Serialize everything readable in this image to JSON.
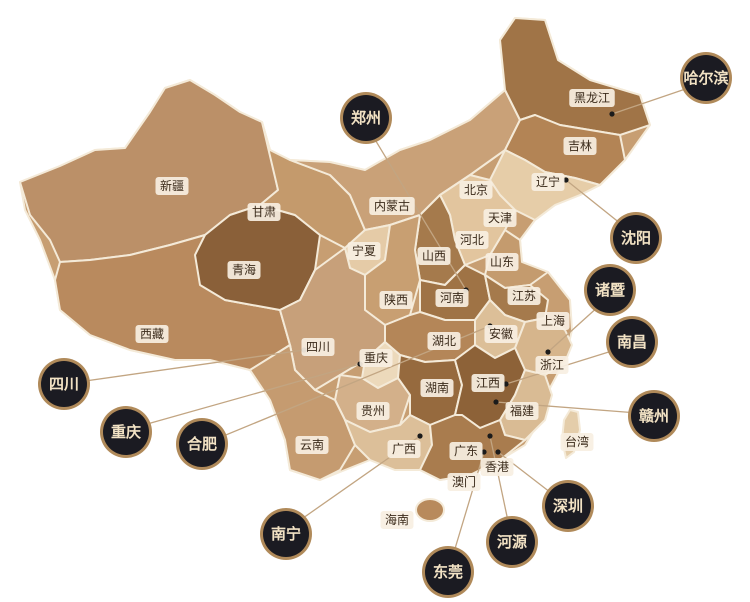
{
  "colors": {
    "land_light": "#e8d3b3",
    "land_mid": "#c79e72",
    "land_dark": "#a07447",
    "land_darker": "#8a6039",
    "border": "#f4ead8",
    "badge_fill": "#1b1b22",
    "badge_ring": "#b08a5a",
    "badge_text": "#f2e2c4",
    "leader_line": "#c2a582",
    "dot": "#1b1b1b"
  },
  "provinces": [
    {
      "id": "heilongjiang",
      "name": "黑龙江"
    },
    {
      "id": "jilin",
      "name": "吉林"
    },
    {
      "id": "liaoning",
      "name": "辽宁"
    },
    {
      "id": "neimenggu",
      "name": "内蒙古"
    },
    {
      "id": "beijing",
      "name": "北京"
    },
    {
      "id": "tianjin",
      "name": "天津"
    },
    {
      "id": "hebei",
      "name": "河北"
    },
    {
      "id": "shanxi",
      "name": "山西"
    },
    {
      "id": "shandong",
      "name": "山东"
    },
    {
      "id": "xinjiang",
      "name": "新疆"
    },
    {
      "id": "gansu",
      "name": "甘肃"
    },
    {
      "id": "ningxia",
      "name": "宁夏"
    },
    {
      "id": "qinghai",
      "name": "青海"
    },
    {
      "id": "shaanxi",
      "name": "陕西"
    },
    {
      "id": "henan",
      "name": "河南"
    },
    {
      "id": "jiangsu",
      "name": "江苏"
    },
    {
      "id": "shanghai",
      "name": "上海"
    },
    {
      "id": "anhui",
      "name": "安徽"
    },
    {
      "id": "hubei",
      "name": "湖北"
    },
    {
      "id": "xizang",
      "name": "西藏"
    },
    {
      "id": "sichuan",
      "name": "四川"
    },
    {
      "id": "chongqing",
      "name": "重庆"
    },
    {
      "id": "zhejiang",
      "name": "浙江"
    },
    {
      "id": "hunan",
      "name": "湖南"
    },
    {
      "id": "jiangxi",
      "name": "江西"
    },
    {
      "id": "guizhou",
      "name": "贵州"
    },
    {
      "id": "fujian",
      "name": "福建"
    },
    {
      "id": "taiwan",
      "name": "台湾"
    },
    {
      "id": "yunnan",
      "name": "云南"
    },
    {
      "id": "guangxi",
      "name": "广西"
    },
    {
      "id": "guangdong",
      "name": "广东"
    },
    {
      "id": "xianggang",
      "name": "香港"
    },
    {
      "id": "aomen",
      "name": "澳门"
    },
    {
      "id": "hainan",
      "name": "海南"
    }
  ],
  "cities": [
    {
      "id": "haerbin",
      "name": "哈尔滨"
    },
    {
      "id": "zhengzhou",
      "name": "郑州"
    },
    {
      "id": "shenyang",
      "name": "沈阳"
    },
    {
      "id": "zhuji",
      "name": "诸暨"
    },
    {
      "id": "nanchang",
      "name": "南昌"
    },
    {
      "id": "ganzhou",
      "name": "赣州"
    },
    {
      "id": "sichuan",
      "name": "四川"
    },
    {
      "id": "chongqing",
      "name": "重庆"
    },
    {
      "id": "hefei",
      "name": "合肥"
    },
    {
      "id": "nanning",
      "name": "南宁"
    },
    {
      "id": "dongguan",
      "name": "东莞"
    },
    {
      "id": "heyuan",
      "name": "河源"
    },
    {
      "id": "shenzhen",
      "name": "深圳"
    }
  ]
}
